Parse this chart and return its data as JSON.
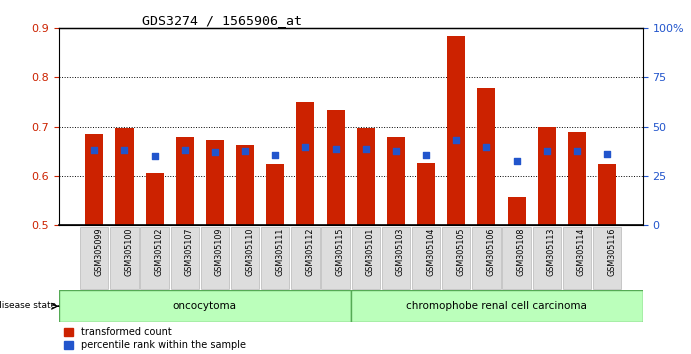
{
  "title": "GDS3274 / 1565906_at",
  "samples": [
    "GSM305099",
    "GSM305100",
    "GSM305102",
    "GSM305107",
    "GSM305109",
    "GSM305110",
    "GSM305111",
    "GSM305112",
    "GSM305115",
    "GSM305101",
    "GSM305103",
    "GSM305104",
    "GSM305105",
    "GSM305106",
    "GSM305108",
    "GSM305113",
    "GSM305114",
    "GSM305116"
  ],
  "red_bars": [
    0.685,
    0.697,
    0.606,
    0.678,
    0.672,
    0.663,
    0.623,
    0.751,
    0.733,
    0.698,
    0.678,
    0.626,
    0.885,
    0.779,
    0.556,
    0.7,
    0.688,
    0.623
  ],
  "blue_markers": [
    0.652,
    0.652,
    0.64,
    0.652,
    0.648,
    0.65,
    0.643,
    0.658,
    0.655,
    0.655,
    0.651,
    0.642,
    0.673,
    0.658,
    0.63,
    0.65,
    0.651,
    0.645
  ],
  "group1_count": 9,
  "group1_label": "oncocytoma",
  "group2_label": "chromophobe renal cell carcinoma",
  "bar_color": "#CC2200",
  "marker_color": "#2255CC",
  "ylim_left": [
    0.5,
    0.9
  ],
  "yticks_left": [
    0.5,
    0.6,
    0.7,
    0.8,
    0.9
  ],
  "yticks_right": [
    0,
    25,
    50,
    75,
    100
  ],
  "ytick_labels_right": [
    "0",
    "25",
    "50",
    "75",
    "100%"
  ],
  "legend_label_red": "transformed count",
  "legend_label_blue": "percentile rank within the sample",
  "disease_state_label": "disease state",
  "group_bg_color": "#BBFFBB",
  "group_border_color": "#55AA55",
  "xtick_bg_color": "#DDDDDD",
  "xtick_edge_color": "#AAAAAA"
}
